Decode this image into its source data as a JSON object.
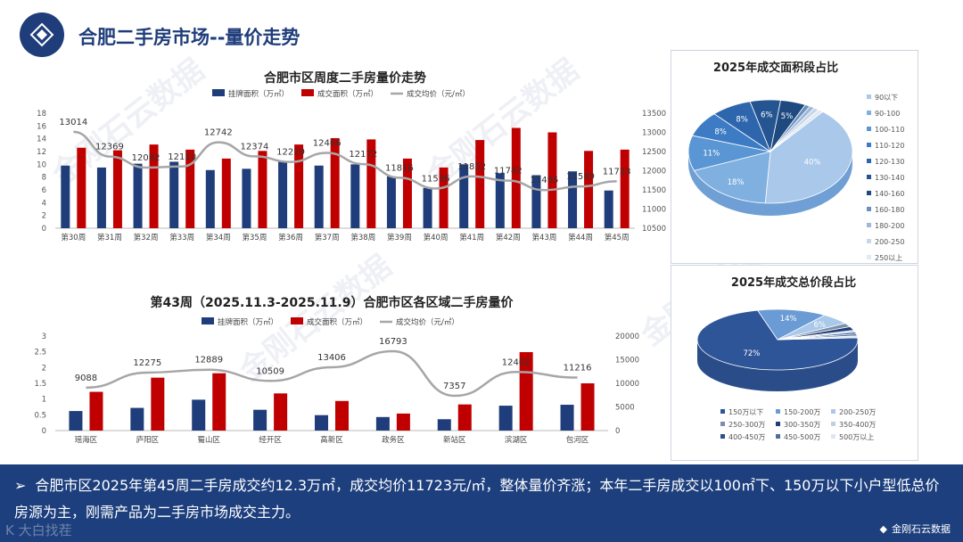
{
  "page": {
    "title": "合肥二手房市场--量价走势",
    "watermark": "金刚石云数据",
    "summary": "合肥市区2025年第45周二手房成交约12.3万㎡，成交均价11723元/㎡，整体量价齐涨；本年二手房成交以100㎡下、150万以下小户型低总价房源为主，刚需产品为二手房市场成交主力。",
    "brand": "金刚石云数据",
    "bottom_left_mark": "K 大白找茬"
  },
  "colors": {
    "navy": "#1f3d7a",
    "red": "#c00000",
    "gray": "#a6a6a6",
    "bar": "#1d3f7d"
  },
  "chart_data": [
    {
      "type": "bar",
      "title": "合肥市区周度二手房量价走势",
      "categories": [
        "第30周",
        "第31周",
        "第32周",
        "第33周",
        "第34周",
        "第35周",
        "第36周",
        "第37周",
        "第38周",
        "第39周",
        "第40周",
        "第41周",
        "第42周",
        "第43周",
        "第44周",
        "第45周"
      ],
      "series": [
        {
          "name": "挂牌面积（万㎡）",
          "type": "bar",
          "axis": "left",
          "values": [
            9.8,
            9.5,
            10.1,
            10.4,
            9.1,
            9.3,
            10.5,
            9.8,
            10.0,
            8.1,
            6.3,
            10.0,
            8.6,
            8.3,
            8.9,
            5.9
          ]
        },
        {
          "name": "成交面积（万㎡）",
          "type": "bar",
          "axis": "left",
          "values": [
            12.6,
            12.2,
            13.1,
            12.3,
            10.9,
            12.1,
            13.1,
            14.1,
            13.9,
            10.9,
            9.5,
            13.8,
            15.7,
            15.0,
            12.1,
            12.3
          ]
        },
        {
          "name": "成交均价（元/㎡）",
          "type": "line",
          "axis": "right",
          "values": [
            13014,
            12369,
            12082,
            12110,
            12742,
            12374,
            12229,
            12466,
            12172,
            11816,
            11536,
            11852,
            11742,
            11495,
            11589,
            11723
          ]
        }
      ],
      "line_labels": [
        "13014",
        "12369",
        "12082",
        "12110",
        "12742",
        "12374",
        "12229",
        "12466",
        "12172",
        "11816",
        "11536",
        "11852",
        "11742",
        "11495",
        "11589",
        "11723"
      ],
      "yticks_left": [
        "0",
        "2",
        "4",
        "6",
        "8",
        "10",
        "12",
        "14",
        "16",
        "18"
      ],
      "yticks_right": [
        "10500",
        "11000",
        "11500",
        "12000",
        "12500",
        "13000",
        "13500"
      ],
      "ylim_left": [
        0,
        18
      ],
      "ylim_right": [
        10500,
        13500
      ],
      "legend": "top"
    },
    {
      "type": "bar",
      "title": "第43周（2025.11.3-2025.11.9）合肥市区各区域二手房量价",
      "categories": [
        "瑶海区",
        "庐阳区",
        "蜀山区",
        "经开区",
        "高新区",
        "政务区",
        "新站区",
        "滨湖区",
        "包河区"
      ],
      "series": [
        {
          "name": "挂牌面积（万㎡）",
          "type": "bar",
          "axis": "left",
          "values": [
            0.62,
            0.72,
            0.98,
            0.66,
            0.49,
            0.43,
            0.36,
            0.79,
            0.82
          ]
        },
        {
          "name": "成交面积（万㎡）",
          "type": "bar",
          "axis": "left",
          "values": [
            1.23,
            1.68,
            1.82,
            1.18,
            0.94,
            0.54,
            0.83,
            2.49,
            1.5
          ]
        },
        {
          "name": "成交均价（元/㎡）",
          "type": "line",
          "axis": "right",
          "values": [
            9088,
            12275,
            12889,
            10509,
            13406,
            16793,
            7357,
            12402,
            11216
          ]
        }
      ],
      "line_labels": [
        "9088",
        "12275",
        "12889",
        "10509",
        "13406",
        "16793",
        "7357",
        "12402",
        "11216"
      ],
      "yticks_left": [
        "0",
        "0.5",
        "1",
        "1.5",
        "2",
        "2.5",
        "3"
      ],
      "yticks_right": [
        "0",
        "5000",
        "10000",
        "15000",
        "20000"
      ],
      "ylim_left": [
        0,
        3
      ],
      "ylim_right": [
        0,
        20000
      ],
      "legend": "top"
    },
    {
      "type": "pie",
      "title": "2025年成交面积段占比",
      "labels": [
        "90以下",
        "90-100",
        "100-110",
        "110-120",
        "120-130",
        "130-140",
        "140-160",
        "160-180",
        "180-200",
        "200-250",
        "250以上"
      ],
      "values": [
        40,
        18,
        11,
        8,
        8,
        6,
        5,
        1,
        1,
        1,
        1
      ],
      "slice_labels": [
        "40%",
        "18%",
        "11%",
        "8%",
        "8%",
        "6%",
        "5%",
        "1%",
        "1%",
        "1%",
        "1%"
      ],
      "colors": [
        "#a9c8ea",
        "#7fb0e0",
        "#5a96d4",
        "#3d7cc4",
        "#2e66ad",
        "#255591",
        "#1e4a80",
        "#6c8fbf",
        "#9eb8da",
        "#c7d6ea",
        "#e1e9f4"
      ],
      "legend": "right"
    },
    {
      "type": "pie",
      "title": "2025年成交总价段占比",
      "labels": [
        "150万以下",
        "150-200万",
        "200-250万",
        "250-300万",
        "300-350万",
        "350-400万",
        "400-450万",
        "450-500万",
        "500万以上"
      ],
      "values": [
        72,
        14,
        6,
        2,
        2,
        1,
        1,
        1,
        1
      ],
      "slice_labels": [
        "72%",
        "14%",
        "6%",
        "2%",
        "2%",
        "1%",
        "1%",
        "1%",
        "1%"
      ],
      "colors": [
        "#2e5597",
        "#6a9bd4",
        "#a9c8ea",
        "#7d8fa8",
        "#1f3d7a",
        "#c0cfe4",
        "#2b4f8a",
        "#4d6d9c",
        "#dde6f2"
      ],
      "legend": "bottom"
    }
  ]
}
